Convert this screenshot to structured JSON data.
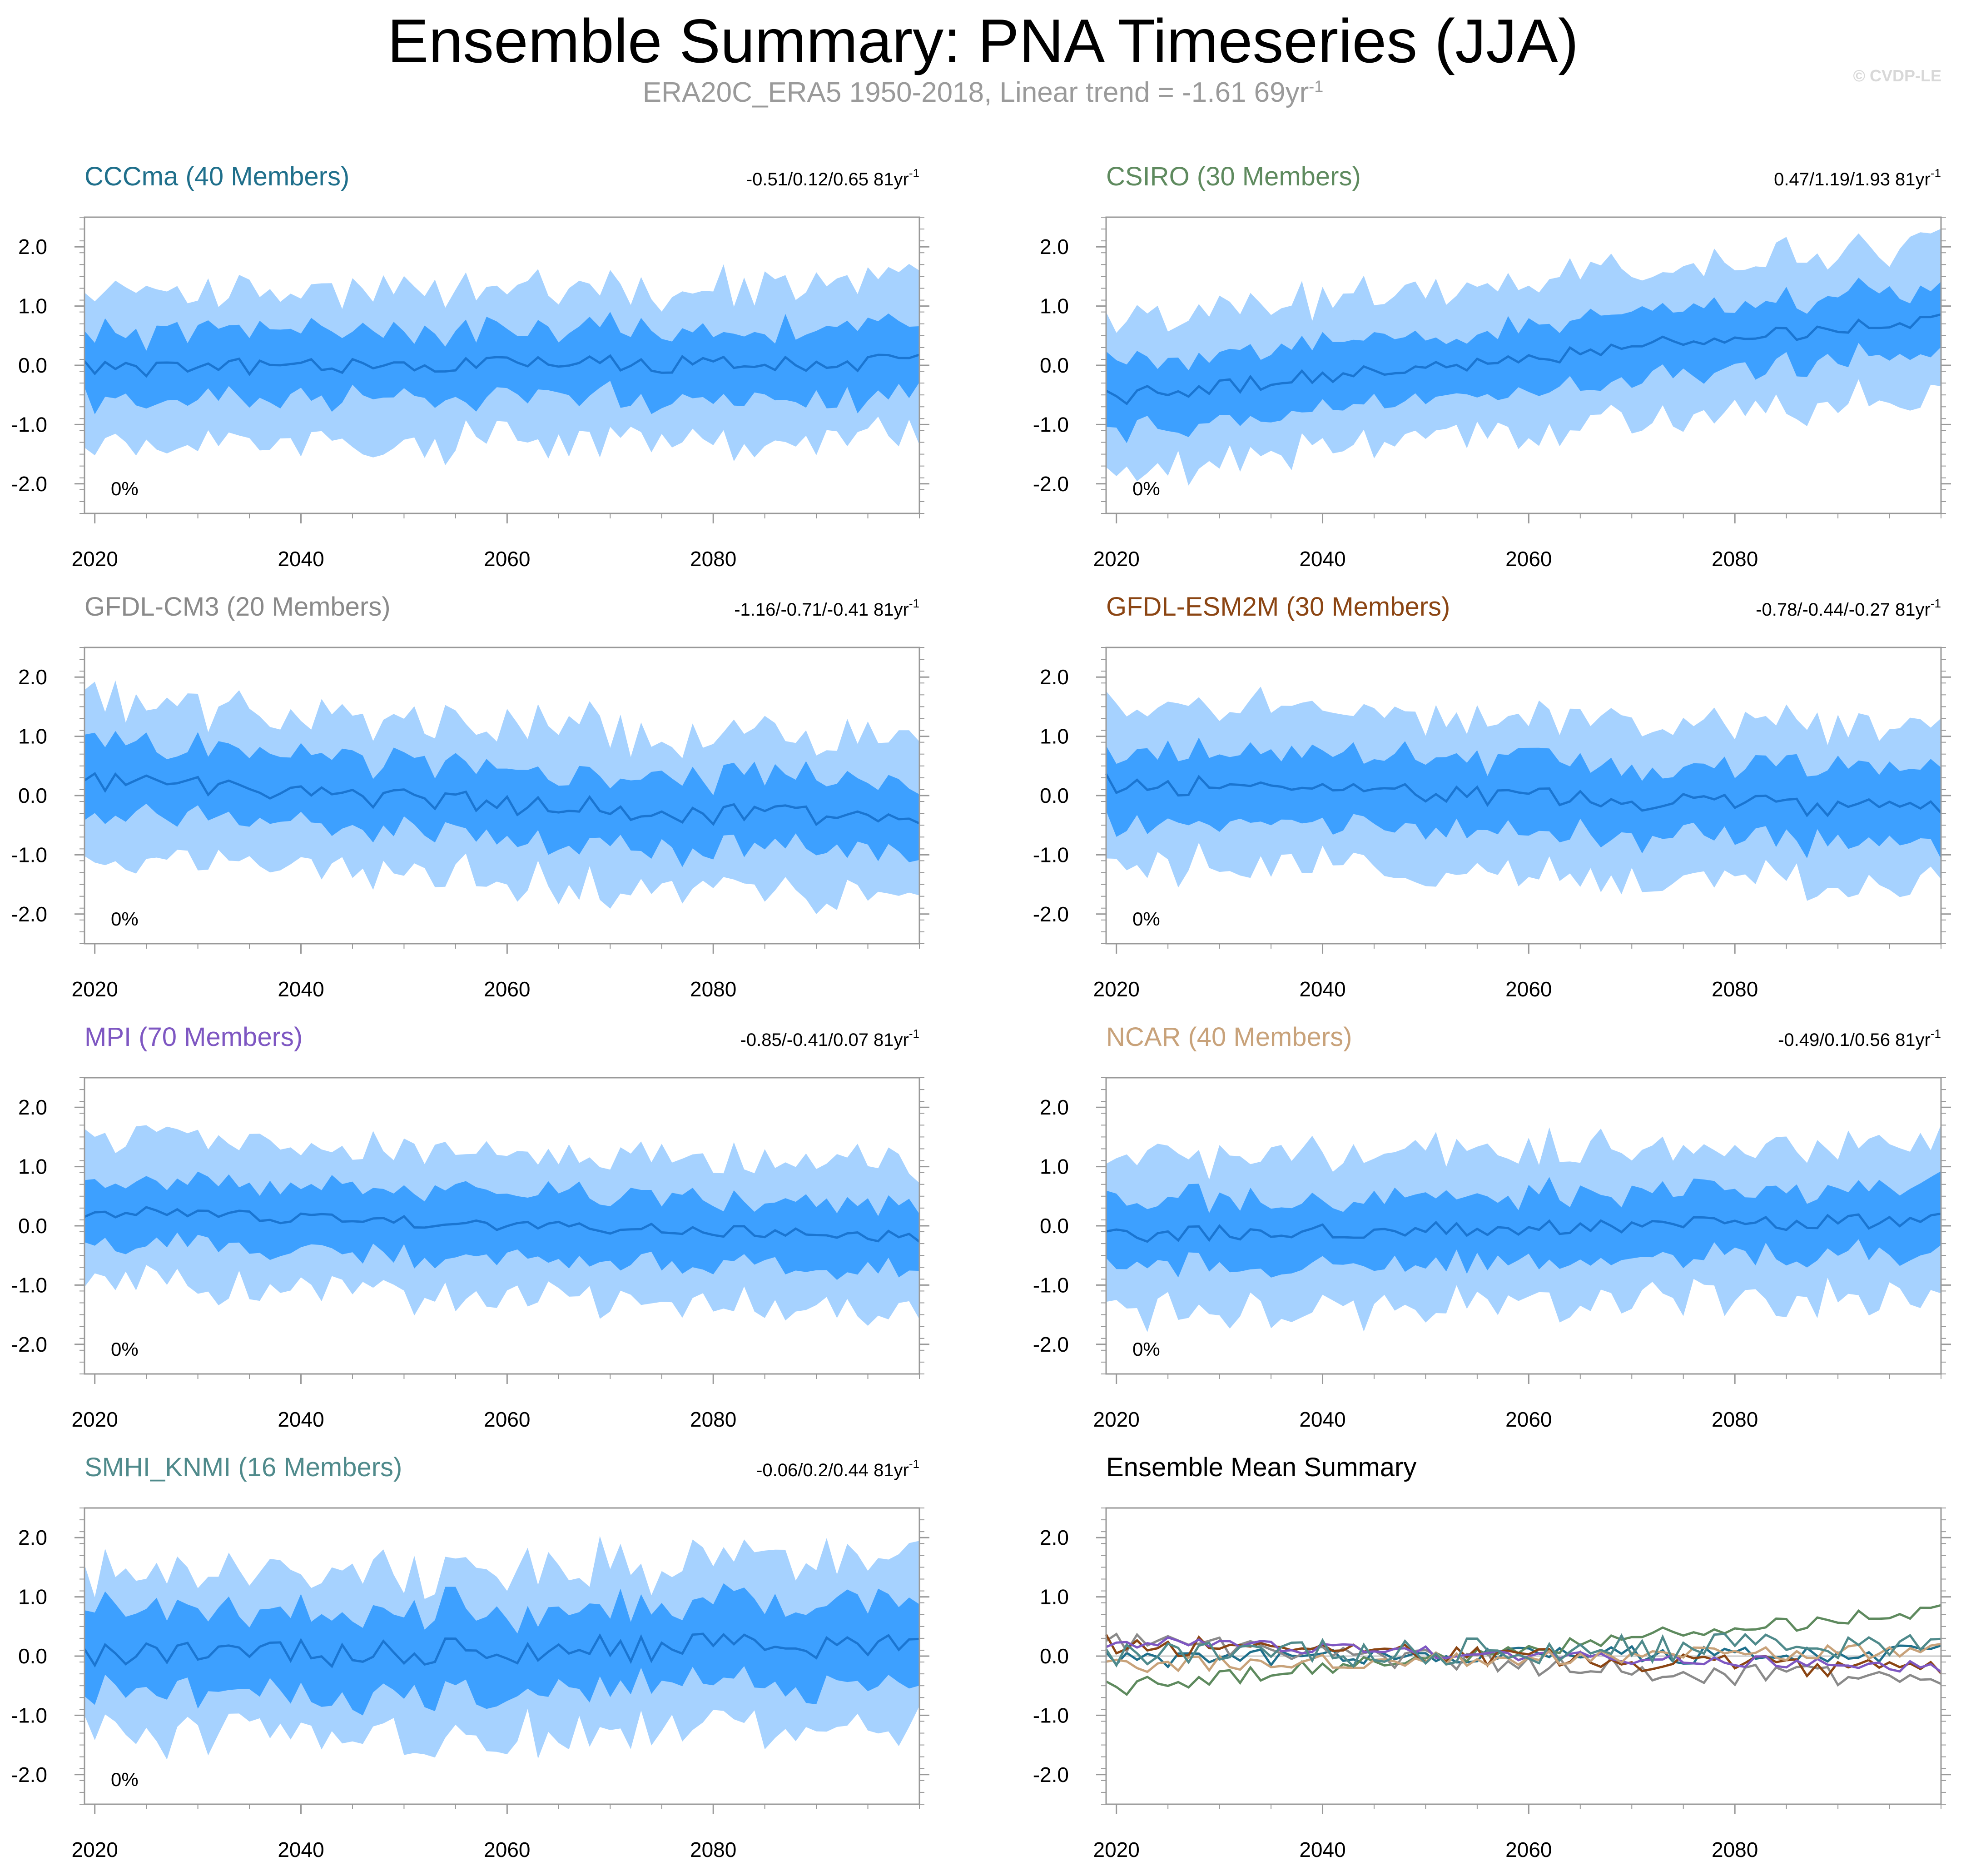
{
  "title": "Ensemble Summary: PNA Timeseries (JJA)",
  "subtitle_main": "ERA20C_ERA5 1950-2018, Linear trend = -1.61 69yr",
  "subtitle_sup": "-1",
  "copyright": "© CVDP-LE",
  "colors": {
    "outer_band": "#a6d2ff",
    "inner_band": "#3da0ff",
    "mean_line": "#1a75d1",
    "zero_line": "#c9c9c9",
    "axis": "#999999",
    "tick_label": "#000000"
  },
  "chart_data": [
    {
      "type": "area",
      "model": "CCCma (40 Members)",
      "title_color": "#1f6f8b",
      "trend_label": "-0.51/0.12/0.65 81yr",
      "trend_sup": "-1",
      "percent_label": "0%",
      "xlim": [
        2019,
        2100
      ],
      "ylim": [
        -2.5,
        2.5
      ],
      "x_ticks": [
        2020,
        2040,
        2060,
        2080
      ],
      "y_ticks": [
        2.0,
        1.0,
        0.0,
        -1.0,
        -2.0
      ],
      "y_tick_labels": [
        "2.0",
        "1.0",
        "0.0",
        "-1.0",
        "-2.0"
      ],
      "mean_start": -0.05,
      "mean_end": 0.05,
      "mean_amp": 0.15,
      "inner_spread": 0.58,
      "outer_spread": 1.28,
      "seed": 11
    },
    {
      "type": "area",
      "model": "CSIRO (30 Members)",
      "title_color": "#5e8a5e",
      "trend_label": "0.47/1.19/1.93 81yr",
      "trend_sup": "-1",
      "percent_label": "0%",
      "xlim": [
        2019,
        2100
      ],
      "ylim": [
        -2.5,
        2.5
      ],
      "x_ticks": [
        2020,
        2040,
        2060,
        2080
      ],
      "y_ticks": [
        2.0,
        1.0,
        0.0,
        -1.0,
        -2.0
      ],
      "y_tick_labels": [
        "2.0",
        "1.0",
        "0.0",
        "-1.0",
        "-2.0"
      ],
      "mean_start": -0.55,
      "mean_end": 0.8,
      "mean_amp": 0.14,
      "inner_spread": 0.55,
      "outer_spread": 1.25,
      "seed": 23
    },
    {
      "type": "area",
      "model": "GFDL-CM3 (20 Members)",
      "title_color": "#8a8a8a",
      "trend_label": "-1.16/-0.71/-0.41 81yr",
      "trend_sup": "-1",
      "percent_label": "0%",
      "xlim": [
        2019,
        2100
      ],
      "ylim": [
        -2.5,
        2.5
      ],
      "x_ticks": [
        2020,
        2040,
        2060,
        2080
      ],
      "y_ticks": [
        2.0,
        1.0,
        0.0,
        -1.0,
        -2.0
      ],
      "y_tick_labels": [
        "2.0",
        "1.0",
        "0.0",
        "-1.0",
        "-2.0"
      ],
      "mean_start": 0.2,
      "mean_end": -0.45,
      "mean_amp": 0.2,
      "inner_spread": 0.6,
      "outer_spread": 1.3,
      "seed": 37
    },
    {
      "type": "area",
      "model": "GFDL-ESM2M (30 Members)",
      "title_color": "#8b4513",
      "trend_label": "-0.78/-0.44/-0.27 81yr",
      "trend_sup": "-1",
      "percent_label": "0%",
      "xlim": [
        2019,
        2100
      ],
      "ylim": [
        -2.5,
        2.5
      ],
      "x_ticks": [
        2020,
        2040,
        2060,
        2080
      ],
      "y_ticks": [
        2.0,
        1.0,
        0.0,
        -1.0,
        -2.0
      ],
      "y_tick_labels": [
        "2.0",
        "1.0",
        "0.0",
        "-1.0",
        "-2.0"
      ],
      "mean_start": 0.2,
      "mean_end": -0.25,
      "mean_amp": 0.17,
      "inner_spread": 0.6,
      "outer_spread": 1.3,
      "seed": 41
    },
    {
      "type": "area",
      "model": "MPI (70 Members)",
      "title_color": "#7e57c2",
      "trend_label": "-0.85/-0.41/0.07 81yr",
      "trend_sup": "-1",
      "percent_label": "0%",
      "xlim": [
        2019,
        2100
      ],
      "ylim": [
        -2.5,
        2.5
      ],
      "x_ticks": [
        2020,
        2040,
        2060,
        2080
      ],
      "y_ticks": [
        2.0,
        1.0,
        0.0,
        -1.0,
        -2.0
      ],
      "y_tick_labels": [
        "2.0",
        "1.0",
        "0.0",
        "-1.0",
        "-2.0"
      ],
      "mean_start": 0.25,
      "mean_end": -0.2,
      "mean_amp": 0.1,
      "inner_spread": 0.55,
      "outer_spread": 1.2,
      "seed": 53
    },
    {
      "type": "area",
      "model": "NCAR (40 Members)",
      "title_color": "#c8a27a",
      "trend_label": "-0.49/0.1/0.56 81yr",
      "trend_sup": "-1",
      "percent_label": "0%",
      "xlim": [
        2019,
        2100
      ],
      "ylim": [
        -2.5,
        2.5
      ],
      "x_ticks": [
        2020,
        2040,
        2060,
        2080
      ],
      "y_ticks": [
        2.0,
        1.0,
        0.0,
        -1.0,
        -2.0
      ],
      "y_tick_labels": [
        "2.0",
        "1.0",
        "0.0",
        "-1.0",
        "-2.0"
      ],
      "mean_start": -0.15,
      "mean_end": 0.1,
      "mean_amp": 0.13,
      "inner_spread": 0.57,
      "outer_spread": 1.27,
      "seed": 67
    },
    {
      "type": "area",
      "model": "SMHI_KNMI (16 Members)",
      "title_color": "#4f8a8b",
      "trend_label": "-0.06/0.2/0.44 81yr",
      "trend_sup": "-1",
      "percent_label": "0%",
      "xlim": [
        2019,
        2100
      ],
      "ylim": [
        -2.5,
        2.5
      ],
      "x_ticks": [
        2020,
        2040,
        2060,
        2080
      ],
      "y_ticks": [
        2.0,
        1.0,
        0.0,
        -1.0,
        -2.0
      ],
      "y_tick_labels": [
        "2.0",
        "1.0",
        "0.0",
        "-1.0",
        "-2.0"
      ],
      "mean_start": 0.0,
      "mean_end": 0.2,
      "mean_amp": 0.24,
      "inner_spread": 0.7,
      "outer_spread": 1.35,
      "seed": 79
    },
    {
      "type": "line",
      "model": "Ensemble Mean Summary",
      "title_color": "#000000",
      "xlim": [
        2019,
        2100
      ],
      "ylim": [
        -2.5,
        2.5
      ],
      "x_ticks": [
        2020,
        2040,
        2060,
        2080
      ],
      "y_ticks": [
        2.0,
        1.0,
        0.0,
        -1.0,
        -2.0
      ],
      "y_tick_labels": [
        "2.0",
        "1.0",
        "0.0",
        "-1.0",
        "-2.0"
      ],
      "series": [
        {
          "name": "CCCma",
          "color": "#1f6f8b",
          "from": 0
        },
        {
          "name": "CSIRO",
          "color": "#5e8a5e",
          "from": 1
        },
        {
          "name": "GFDL-CM3",
          "color": "#8a8a8a",
          "from": 2
        },
        {
          "name": "GFDL-ESM2M",
          "color": "#8b4513",
          "from": 3
        },
        {
          "name": "MPI",
          "color": "#7e57c2",
          "from": 4
        },
        {
          "name": "NCAR",
          "color": "#c8a27a",
          "from": 5
        },
        {
          "name": "SMHI_KNMI",
          "color": "#4f8a8b",
          "from": 6
        }
      ]
    }
  ]
}
